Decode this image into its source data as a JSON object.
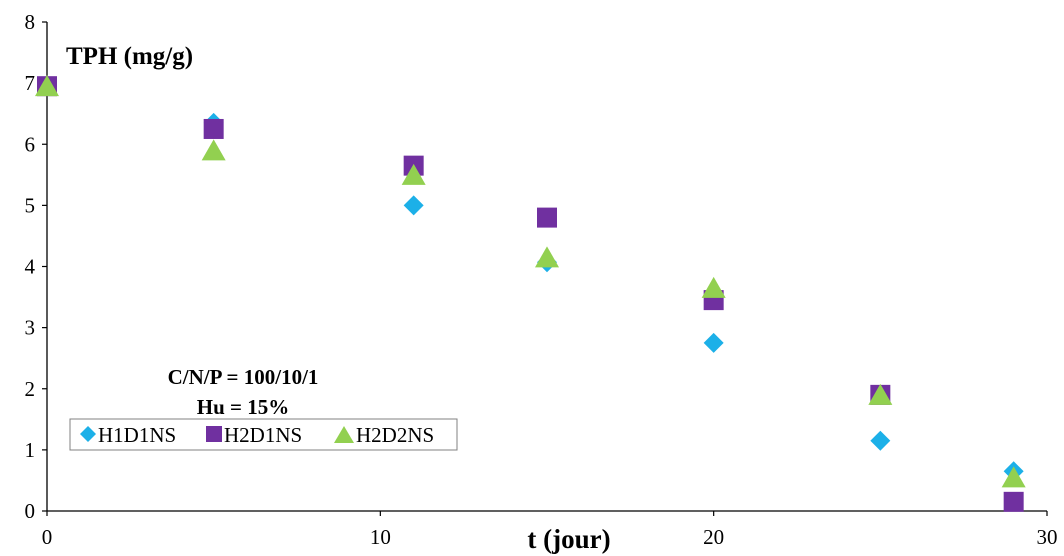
{
  "chart_data": {
    "type": "scatter",
    "ylabel": "TPH (mg/g)",
    "xlabel": "t (jour)",
    "xlim": [
      0,
      30
    ],
    "ylim": [
      0,
      8
    ],
    "x_ticks": [
      0,
      10,
      20,
      30
    ],
    "y_ticks": [
      0,
      1,
      2,
      3,
      4,
      5,
      6,
      7,
      8
    ],
    "grid": false,
    "legend_position": "bottom-left",
    "annotations": [
      "C/N/P = 100/10/1",
      "Hu = 15%"
    ],
    "series": [
      {
        "name": "H1D1NS",
        "marker": "diamond",
        "color": "#1CB0E8",
        "x": [
          0,
          5,
          11,
          15,
          20,
          25,
          29
        ],
        "y": [
          6.95,
          6.35,
          5.0,
          4.07,
          2.75,
          1.15,
          0.65
        ]
      },
      {
        "name": "H2D1NS",
        "marker": "square",
        "color": "#7030A0",
        "x": [
          0,
          5,
          11,
          15,
          20,
          25,
          29
        ],
        "y": [
          6.95,
          6.25,
          5.65,
          4.8,
          3.45,
          1.9,
          0.15
        ]
      },
      {
        "name": "H2D2NS",
        "marker": "triangle",
        "color": "#92D050",
        "x": [
          0,
          5,
          11,
          15,
          20,
          25,
          29
        ],
        "y": [
          6.95,
          5.9,
          5.5,
          4.15,
          3.65,
          1.9,
          0.55
        ]
      }
    ]
  }
}
